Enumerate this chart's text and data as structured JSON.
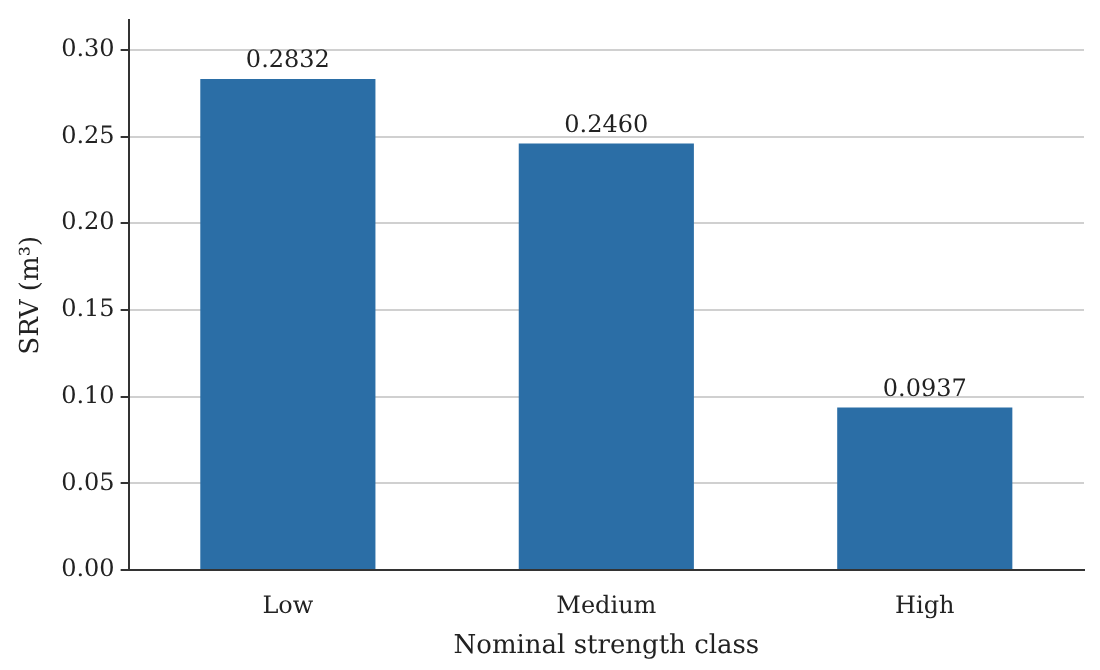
{
  "chart_data": {
    "type": "bar",
    "xlabel": "Nominal strength class",
    "ylabel": "SRV (m³)",
    "categories": [
      "Low",
      "Medium",
      "High"
    ],
    "values": [
      0.2832,
      0.246,
      0.0937
    ],
    "value_labels": [
      "0.2832",
      "0.2460",
      "0.0937"
    ],
    "color": "#2b6ea6",
    "ylim": [
      0,
      0.317
    ],
    "yticks": [
      {
        "value": 0,
        "label": "0.00"
      },
      0.05,
      {
        "value": 0.1,
        "label": "0.10"
      },
      0.15,
      {
        "value": 0.2,
        "label": "0.20"
      },
      0.25,
      {
        "value": 0.3,
        "label": "0.30"
      }
    ],
    "grid": "y",
    "legend": false
  }
}
